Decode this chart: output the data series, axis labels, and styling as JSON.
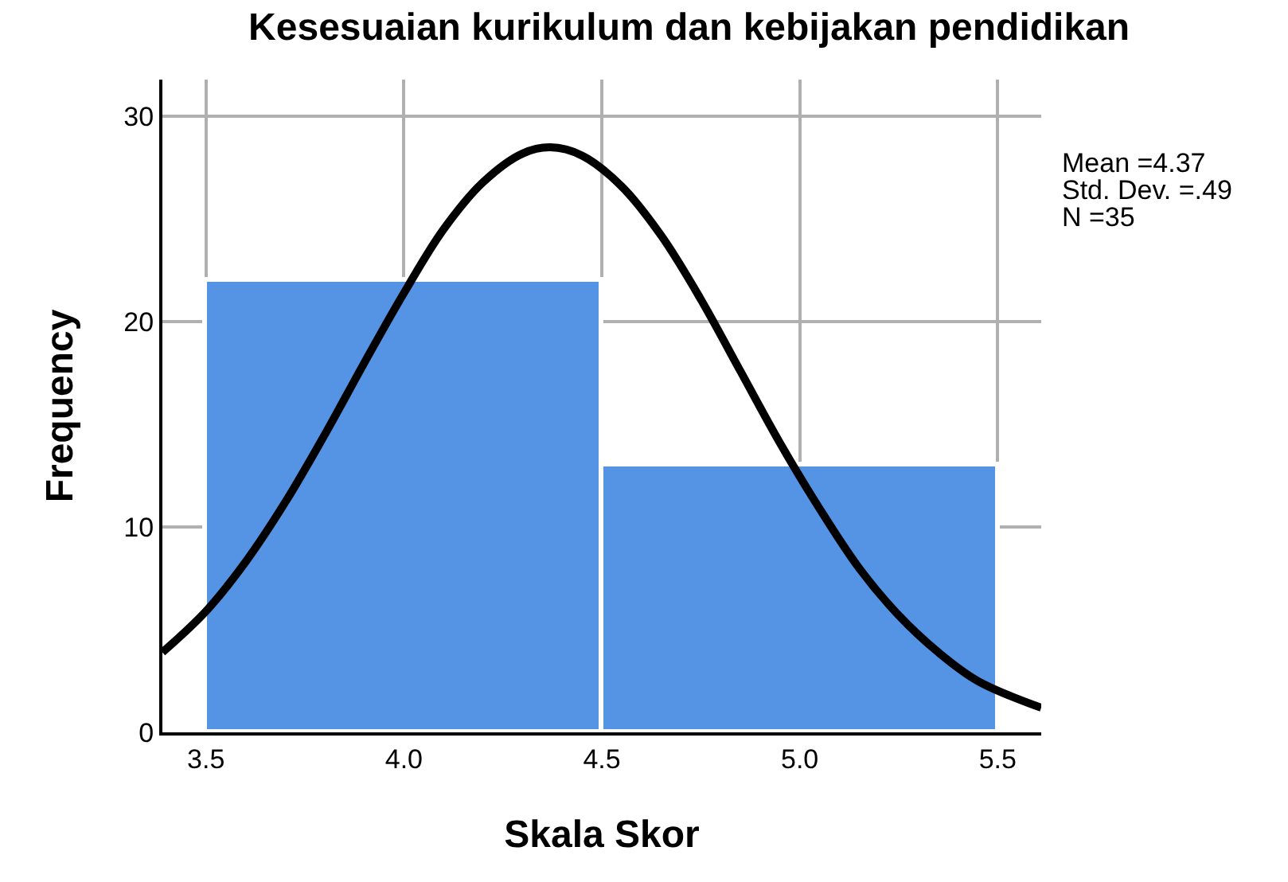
{
  "chart_data": {
    "type": "histogram",
    "title": "Kesesuaian kurikulum dan kebijakan pendidikan",
    "xlabel": "Skala Skor",
    "ylabel": "Frequency",
    "bins": [
      3.5,
      4.5,
      5.5
    ],
    "values": [
      22,
      13
    ],
    "color": "#5594e4",
    "series": [
      {
        "type": "line",
        "color": "#000000",
        "x": [
          3.39,
          3.5,
          3.6,
          3.7,
          3.8,
          3.9,
          4.0,
          4.1,
          4.2,
          4.3,
          4.37,
          4.45,
          4.55,
          4.65,
          4.75,
          4.85,
          4.95,
          5.05,
          5.15,
          5.25,
          5.35,
          5.45,
          5.61
        ],
        "values": [
          3.9,
          5.9,
          8.3,
          11.2,
          14.5,
          18.0,
          21.4,
          24.5,
          26.8,
          28.2,
          28.5,
          28.1,
          26.6,
          24.2,
          21.1,
          17.6,
          14.1,
          10.9,
          8.0,
          5.7,
          3.9,
          2.5,
          1.2
        ]
      }
    ],
    "xlim": [
      3.39,
      5.61
    ],
    "xticks": [
      {
        "value": 3.5,
        "label": "3.5"
      },
      {
        "value": 4.0,
        "label": "4.0"
      },
      {
        "value": 4.5,
        "label": "4.5"
      },
      {
        "value": 5.0,
        "label": "5.0"
      },
      {
        "value": 5.5,
        "label": "5.5"
      }
    ],
    "ylim": [
      0,
      31.8
    ],
    "yticks": [
      0,
      10,
      20,
      30
    ],
    "grid": true,
    "annotations": [
      "Mean =4.37",
      "Std. Dev. =.49",
      "N =35"
    ]
  }
}
